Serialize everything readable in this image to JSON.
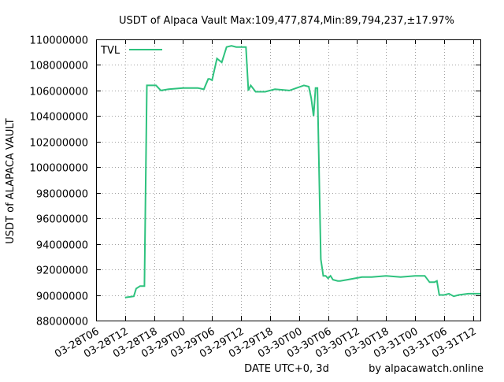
{
  "chart_data": {
    "type": "line",
    "title": "USDT of Alpaca Vault Max:109,477,874,Min:89,794,237,±17.97%",
    "xlabel": "DATE UTC+0, 3d",
    "ylabel": "USDT of ALAPACA VAULT",
    "credit": "by alpacawatch.online",
    "legend": {
      "position": "top-left",
      "entries": [
        "TVL"
      ]
    },
    "grid": true,
    "ylim": [
      88000000,
      110000000
    ],
    "xlim": [
      "03-28T06",
      "03-31T13:30"
    ],
    "y_ticks": [
      88000000,
      90000000,
      92000000,
      94000000,
      96000000,
      98000000,
      100000000,
      102000000,
      104000000,
      106000000,
      108000000,
      110000000
    ],
    "y_tick_labels": [
      "88000000",
      "90000000",
      "92000000",
      "94000000",
      "96000000",
      "98000000",
      "100000000",
      "102000000",
      "104000000",
      "106000000",
      "108000000",
      "110000000"
    ],
    "x_ticks": [
      "03-28T06",
      "03-28T12",
      "03-28T18",
      "03-29T00",
      "03-29T06",
      "03-29T12",
      "03-29T18",
      "03-30T00",
      "03-30T06",
      "03-30T12",
      "03-30T18",
      "03-31T00",
      "03-31T06",
      "03-31T12"
    ],
    "colors": {
      "series": "#2ec27e",
      "grid": "#a0a0a0",
      "frame": "#000000"
    },
    "series": [
      {
        "name": "TVL",
        "x": [
          "03-28T12:00",
          "03-28T13:48",
          "03-28T14:18",
          "03-28T15:06",
          "03-28T16:00",
          "03-28T16:30",
          "03-28T17:00",
          "03-28T18:24",
          "03-28T19:24",
          "03-28T21:00",
          "03-29T00:00",
          "03-29T02:00",
          "03-29T03:00",
          "03-29T04:18",
          "03-29T05:12",
          "03-29T05:30",
          "03-29T06:00",
          "03-29T07:00",
          "03-29T08:00",
          "03-29T09:00",
          "03-29T10:00",
          "03-29T11:00",
          "03-29T12:00",
          "03-29T13:00",
          "03-29T13:30",
          "03-29T14:00",
          "03-29T15:00",
          "03-29T16:00",
          "03-29T17:00",
          "03-29T19:00",
          "03-29T22:00",
          "03-30T01:00",
          "03-30T02:00",
          "03-30T02:30",
          "03-30T03:00",
          "03-30T03:24",
          "03-30T03:48",
          "03-30T04:30",
          "03-30T05:00",
          "03-30T05:30",
          "03-30T06:00",
          "03-30T06:30",
          "03-30T07:00",
          "03-30T08:00",
          "03-30T08:30",
          "03-30T10:00",
          "03-30T13:00",
          "03-30T15:00",
          "03-30T18:00",
          "03-30T21:00",
          "03-31T00:00",
          "03-31T01:00",
          "03-31T02:00",
          "03-31T03:00",
          "03-31T04:00",
          "03-31T04:30",
          "03-31T05:00",
          "03-31T06:00",
          "03-31T07:00",
          "03-31T08:00",
          "03-31T09:00",
          "03-31T11:00",
          "03-31T13:30"
        ],
        "values": [
          89800000,
          89900000,
          90500000,
          90700000,
          90700000,
          106400000,
          106400000,
          106400000,
          106000000,
          106100000,
          106200000,
          106200000,
          106200000,
          106100000,
          106900000,
          106900000,
          106800000,
          108500000,
          108200000,
          109400000,
          109500000,
          109400000,
          109400000,
          109400000,
          106000000,
          106400000,
          105900000,
          105900000,
          105900000,
          106100000,
          106000000,
          106400000,
          106300000,
          105400000,
          104000000,
          106200000,
          106200000,
          92800000,
          91500000,
          91500000,
          91300000,
          91500000,
          91200000,
          91100000,
          91100000,
          91200000,
          91400000,
          91400000,
          91500000,
          91400000,
          91500000,
          91500000,
          91500000,
          91000000,
          91000000,
          91100000,
          90000000,
          90000000,
          90100000,
          89900000,
          90000000,
          90100000,
          90100000
        ]
      }
    ]
  }
}
